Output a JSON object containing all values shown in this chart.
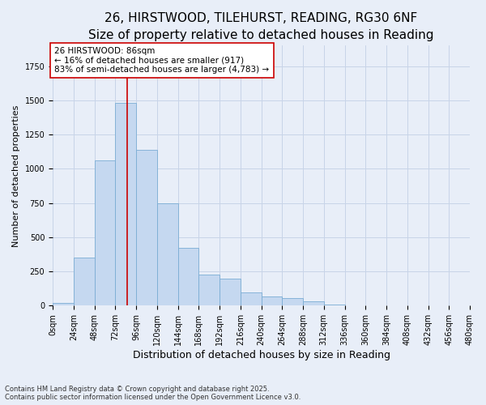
{
  "title": "26, HIRSTWOOD, TILEHURST, READING, RG30 6NF",
  "subtitle": "Size of property relative to detached houses in Reading",
  "xlabel": "Distribution of detached houses by size in Reading",
  "ylabel": "Number of detached properties",
  "bin_labels": [
    "0sqm",
    "24sqm",
    "48sqm",
    "72sqm",
    "96sqm",
    "120sqm",
    "144sqm",
    "168sqm",
    "192sqm",
    "216sqm",
    "240sqm",
    "264sqm",
    "288sqm",
    "312sqm",
    "336sqm",
    "360sqm",
    "384sqm",
    "408sqm",
    "432sqm",
    "456sqm",
    "480sqm"
  ],
  "bar_values": [
    20,
    350,
    1060,
    1480,
    1140,
    750,
    420,
    230,
    200,
    100,
    70,
    55,
    30,
    10,
    5,
    5,
    0,
    0,
    0,
    0
  ],
  "bar_color": "#c5d8f0",
  "bar_edge_color": "#7aadd4",
  "grid_color": "#c8d4e8",
  "background_color": "#e8eef8",
  "vline_x": 86,
  "vline_color": "#cc0000",
  "annotation_text": "26 HIRSTWOOD: 86sqm\n← 16% of detached houses are smaller (917)\n83% of semi-detached houses are larger (4,783) →",
  "annotation_box_facecolor": "#ffffff",
  "annotation_box_edge": "#cc0000",
  "ylim": [
    0,
    1900
  ],
  "xlim_start": 0,
  "xlim_end": 480,
  "bin_width": 24,
  "footnote": "Contains HM Land Registry data © Crown copyright and database right 2025.\nContains public sector information licensed under the Open Government Licence v3.0.",
  "title_fontsize": 11,
  "subtitle_fontsize": 9.5,
  "xlabel_fontsize": 9,
  "ylabel_fontsize": 8,
  "tick_fontsize": 7,
  "annotation_fontsize": 7.5,
  "footnote_fontsize": 6
}
